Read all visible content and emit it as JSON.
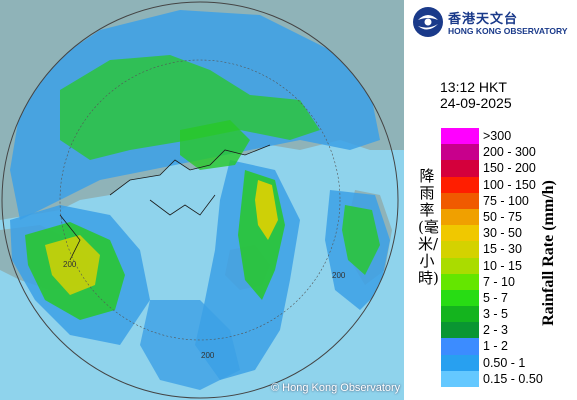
{
  "header": {
    "logo_cn": "香港天文台",
    "logo_en": "HONG KONG OBSERVATORY"
  },
  "timestamp": {
    "time": "13:12 HKT",
    "date": "24-09-2025"
  },
  "legend": {
    "title_cn": "降雨率(毫米/小時)",
    "title_en": "Rainfall Rate (mm/h)",
    "items": [
      {
        "label": ">300",
        "color": "#ff00ff"
      },
      {
        "label": "200 - 300",
        "color": "#c8008c"
      },
      {
        "label": "150 - 200",
        "color": "#d4003c"
      },
      {
        "label": "100 - 150",
        "color": "#ff1e00"
      },
      {
        "label": "75 - 100",
        "color": "#f05a00"
      },
      {
        "label": "50 - 75",
        "color": "#f0a000"
      },
      {
        "label": "30 - 50",
        "color": "#f0c800"
      },
      {
        "label": "15 - 30",
        "color": "#d4d200"
      },
      {
        "label": "10 - 15",
        "color": "#aadc00"
      },
      {
        "label": "7 - 10",
        "color": "#64e600"
      },
      {
        "label": "5 - 7",
        "color": "#28dc14"
      },
      {
        "label": "3 - 5",
        "color": "#14b41e"
      },
      {
        "label": "2 - 3",
        "color": "#0a9632"
      },
      {
        "label": "1 - 2",
        "color": "#3c8cff"
      },
      {
        "label": "0.50 - 1",
        "color": "#28a0f0"
      },
      {
        "label": "0.15 - 0.50",
        "color": "#64c8ff"
      }
    ]
  },
  "map": {
    "range_ring_labels": [
      "200",
      "200",
      "200"
    ],
    "copyright": "© Hong Kong Observatory",
    "colors": {
      "sea": "#8fd3ec",
      "land": "#8fb3b8",
      "rain_light": "#3ca0e6",
      "rain_moderate": "#28c828",
      "rain_heavy": "#e0d200"
    }
  }
}
